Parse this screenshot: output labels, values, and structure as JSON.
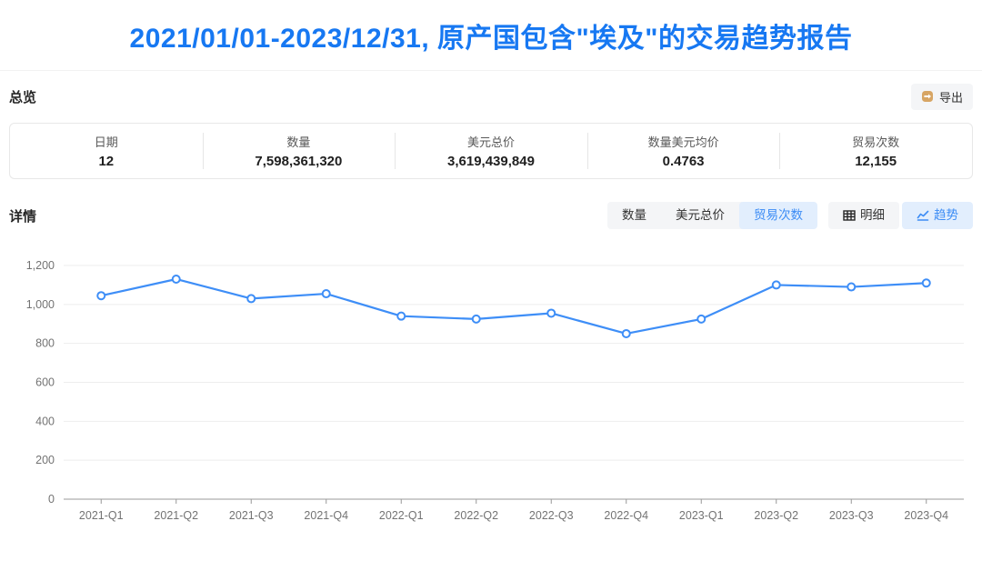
{
  "title": "2021/01/01-2023/12/31, 原产国包含\"埃及\"的交易趋势报告",
  "overview": {
    "section_label": "总览",
    "export_label": "导出",
    "stats": [
      {
        "label": "日期",
        "value": "12"
      },
      {
        "label": "数量",
        "value": "7,598,361,320"
      },
      {
        "label": "美元总价",
        "value": "3,619,439,849"
      },
      {
        "label": "数量美元均价",
        "value": "0.4763"
      },
      {
        "label": "贸易次数",
        "value": "12,155"
      }
    ]
  },
  "details": {
    "section_label": "详情",
    "metric_tabs": [
      {
        "label": "数量",
        "active": false
      },
      {
        "label": "美元总价",
        "active": false
      },
      {
        "label": "贸易次数",
        "active": true
      }
    ],
    "view_tabs": [
      {
        "label": "明细",
        "icon": "table-icon",
        "active": false
      },
      {
        "label": "趋势",
        "icon": "trend-icon",
        "active": true
      }
    ]
  },
  "colors": {
    "title_blue": "#1778f2",
    "active_tab_text": "#3c8cf5",
    "active_tab_bg": "#e2eefd",
    "line_blue": "#3e8ef7",
    "grid_gray": "#ededed",
    "axis_gray": "#999999",
    "export_icon_tan": "#d7a564"
  },
  "chart_data": {
    "type": "line",
    "title": "",
    "xlabel": "",
    "ylabel": "",
    "categories": [
      "2021-Q1",
      "2021-Q2",
      "2021-Q3",
      "2021-Q4",
      "2022-Q1",
      "2022-Q2",
      "2022-Q3",
      "2022-Q4",
      "2023-Q1",
      "2023-Q2",
      "2023-Q3",
      "2023-Q4"
    ],
    "series": [
      {
        "name": "贸易次数",
        "values": [
          1045,
          1130,
          1030,
          1055,
          940,
          925,
          955,
          850,
          925,
          1100,
          1090,
          1110
        ]
      }
    ],
    "ylim": [
      0,
      1200
    ],
    "ytick_step": 200,
    "grid": true,
    "legend_position": "none",
    "marker": "hollow-circle"
  }
}
